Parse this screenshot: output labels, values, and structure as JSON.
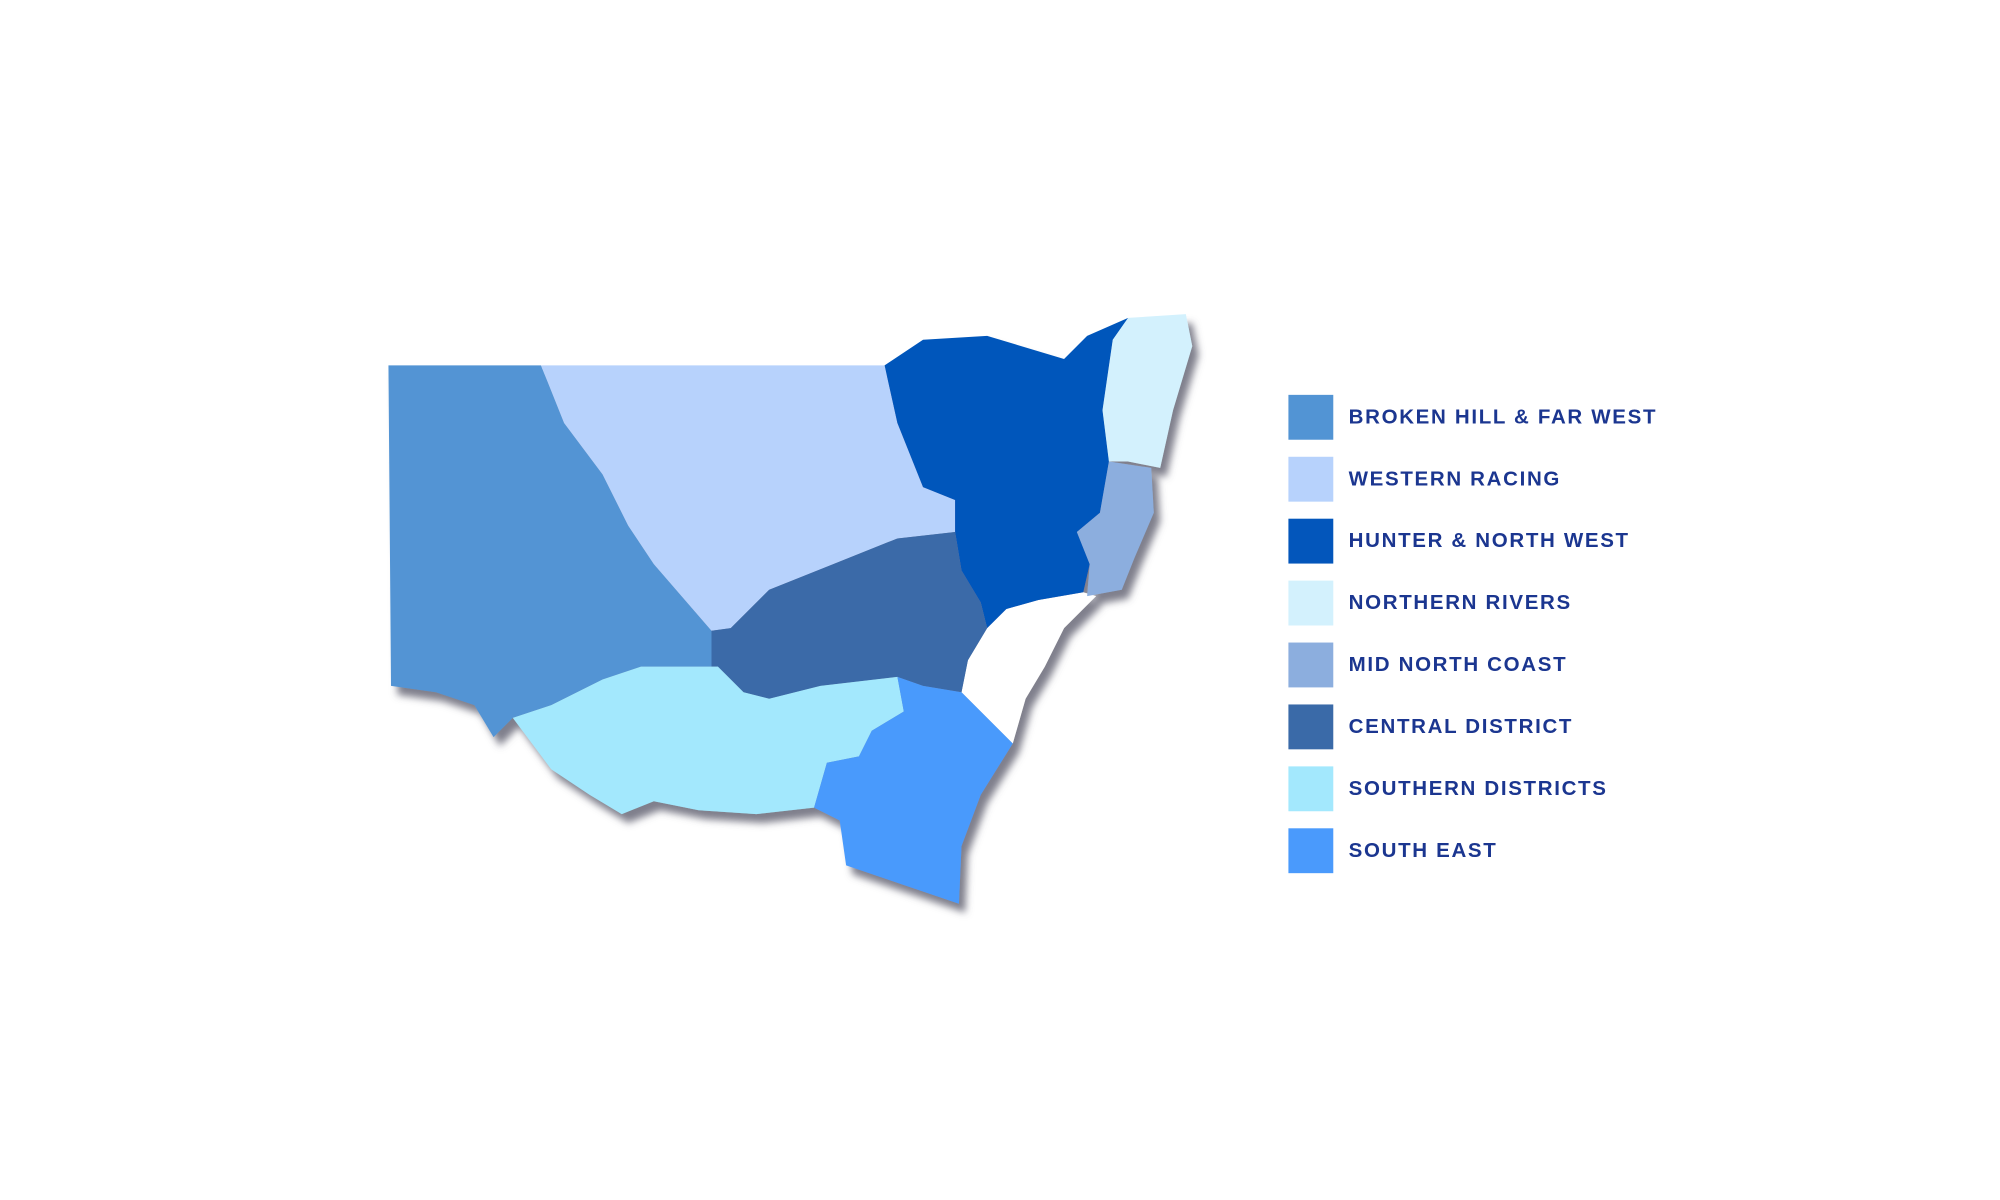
{
  "legend": {
    "items": [
      {
        "label": "BROKEN HILL & FAR WEST",
        "color": "#5294d4"
      },
      {
        "label": "WESTERN RACING",
        "color": "#b7d2fc"
      },
      {
        "label": "HUNTER & NORTH WEST",
        "color": "#0356bb"
      },
      {
        "label": "NORTHERN RIVERS",
        "color": "#d3f1fd"
      },
      {
        "label": "MID NORTH COAST",
        "color": "#8caede"
      },
      {
        "label": "CENTRAL DISTRICT",
        "color": "#3a6aa8"
      },
      {
        "label": "SOUTHERN DISTRICTS",
        "color": "#a3e8fd"
      },
      {
        "label": "SOUTH EAST",
        "color": "#4a9afc"
      }
    ]
  }
}
